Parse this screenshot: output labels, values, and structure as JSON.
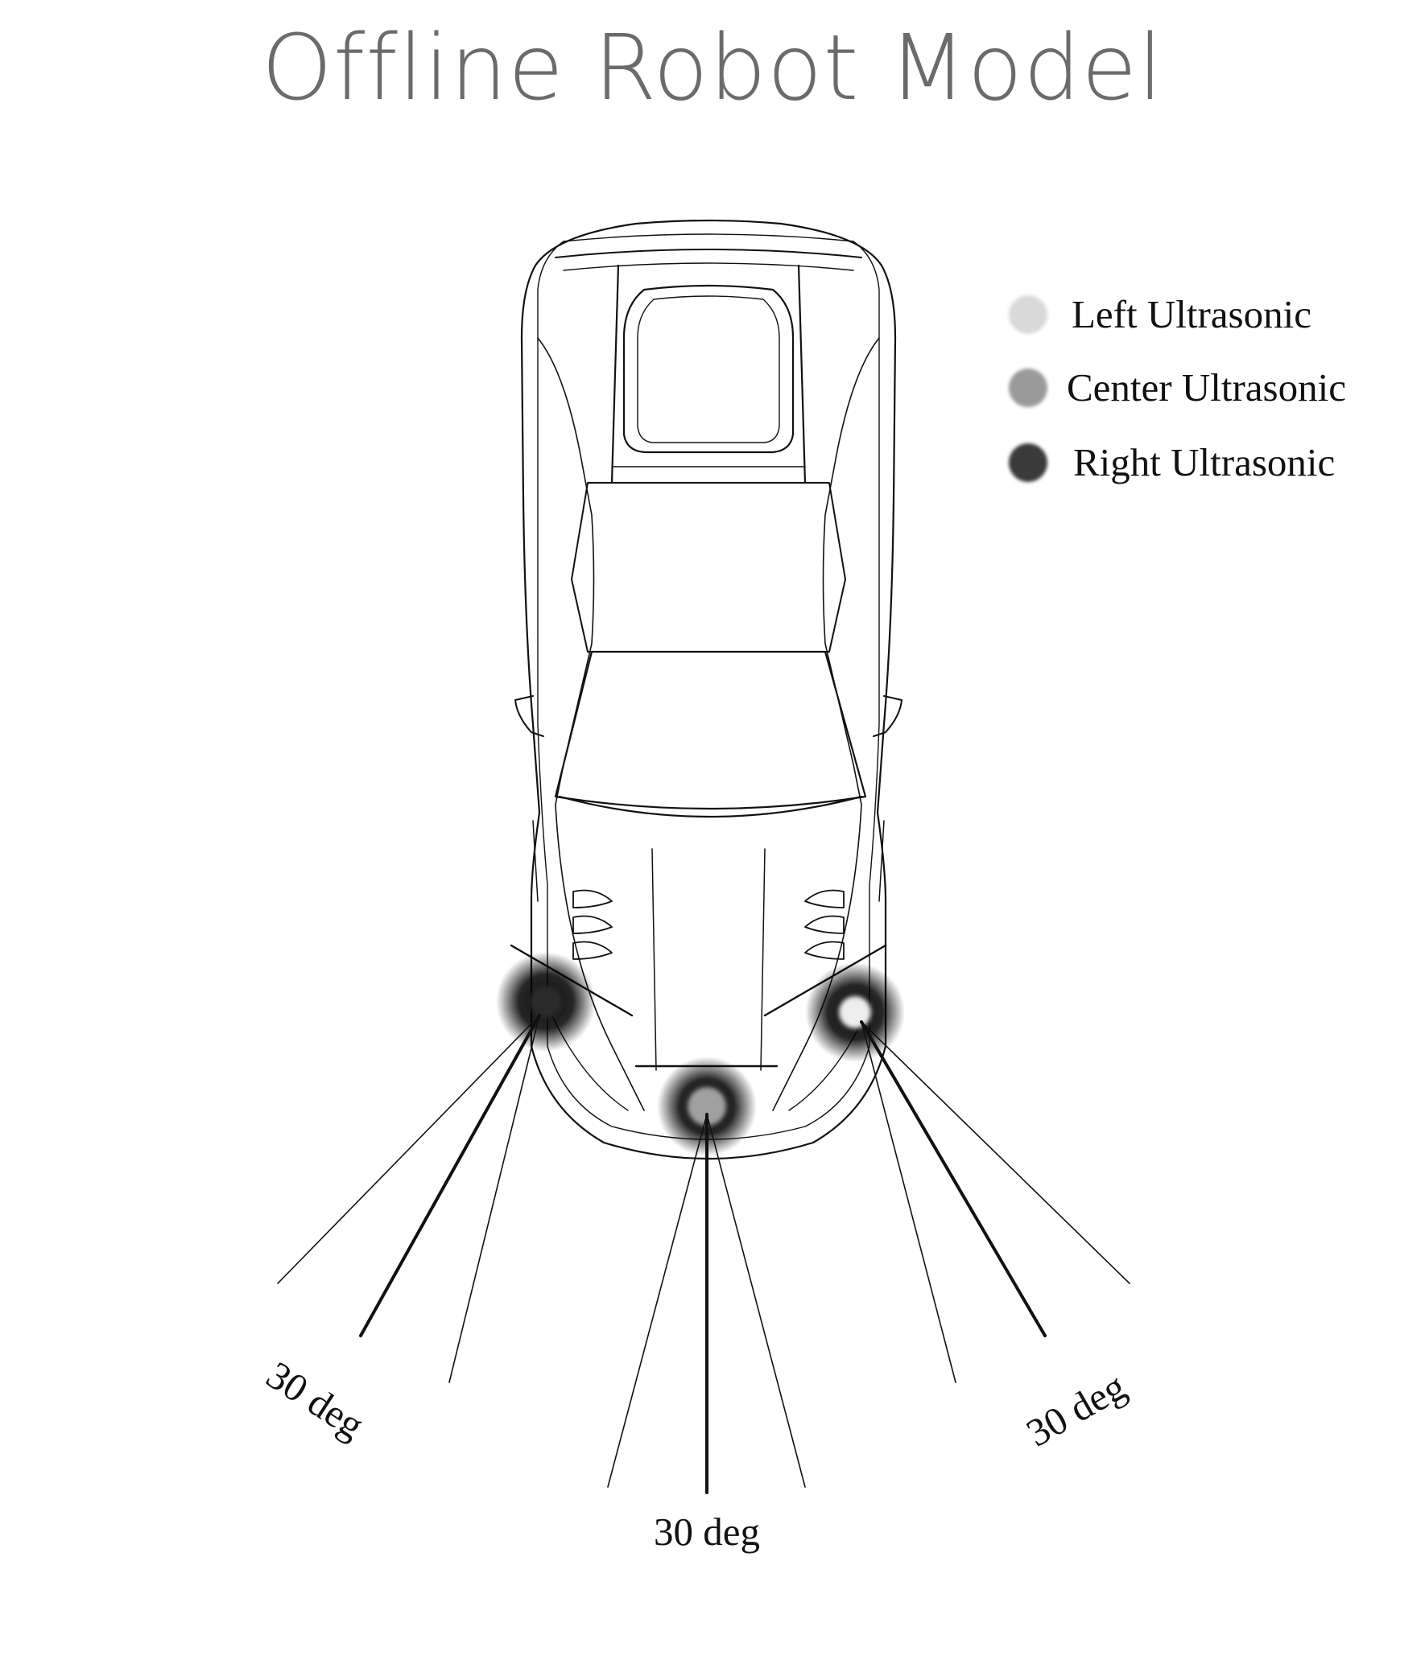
{
  "title": "Offline Robot Model",
  "legend": [
    {
      "label": "Left Ultrasonic",
      "color": "#d9d9d9"
    },
    {
      "label": "Center Ultrasonic",
      "color": "#9a9a9a"
    },
    {
      "label": "Right Ultrasonic",
      "color": "#3a3a3a"
    }
  ],
  "angle_labels": {
    "left": "30 deg",
    "center": "30 deg",
    "right": "30 deg"
  },
  "colors": {
    "outline": "#111111",
    "background": "#ffffff"
  }
}
